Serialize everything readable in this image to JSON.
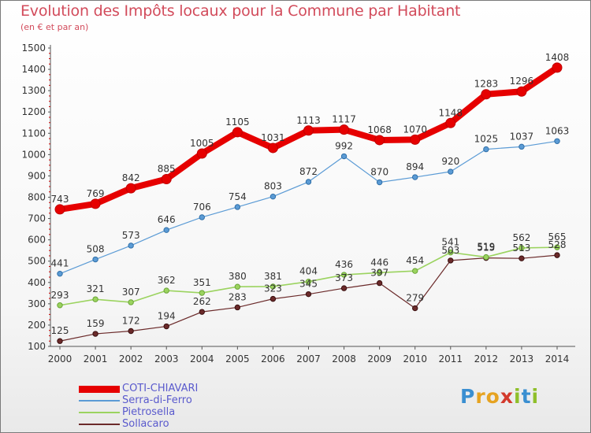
{
  "header": {
    "title": "Evolution des Impôts locaux pour la Commune par Habitant",
    "subtitle": "(en € et par an)"
  },
  "colors": {
    "title": "#d24b5b",
    "axis": "#555555",
    "grid_tick": "#cc0000"
  },
  "logo": {
    "text": "Proxiti",
    "letters": [
      "P",
      "r",
      "o",
      "x",
      "i",
      "t",
      "i"
    ]
  },
  "chart_data": {
    "type": "line",
    "title": "Evolution des Impôts locaux pour la Commune par Habitant",
    "subtitle": "(en € et par an)",
    "xlabel": "",
    "ylabel": "",
    "ylim": [
      100,
      1500
    ],
    "yticks": [
      100,
      200,
      300,
      400,
      500,
      600,
      700,
      800,
      900,
      1000,
      1100,
      1200,
      1300,
      1400,
      1500
    ],
    "x": [
      "2000",
      "2001",
      "2002",
      "2003",
      "2004",
      "2005",
      "2006",
      "2007",
      "2008",
      "2009",
      "2010",
      "2011",
      "2012",
      "2013",
      "2014"
    ],
    "grid": false,
    "legend_position": "bottom-left",
    "series": [
      {
        "name": "COTI-CHIAVARI",
        "color": "#e60000",
        "values": [
          743,
          769,
          842,
          885,
          1005,
          1105,
          1031,
          1113,
          1117,
          1068,
          1070,
          1148,
          1283,
          1296,
          1408
        ]
      },
      {
        "name": "Serra-di-Ferro",
        "color": "#5b9bd5",
        "values": [
          441,
          508,
          573,
          646,
          706,
          754,
          803,
          872,
          992,
          870,
          894,
          920,
          1025,
          1037,
          1063
        ]
      },
      {
        "name": "Pietrosella",
        "color": "#9bd35f",
        "values": [
          293,
          321,
          307,
          362,
          351,
          380,
          381,
          404,
          436,
          446,
          454,
          541,
          519,
          562,
          565
        ]
      },
      {
        "name": "Sollacaro",
        "color": "#6b2a2a",
        "values": [
          125,
          159,
          172,
          194,
          262,
          283,
          323,
          345,
          373,
          397,
          279,
          503,
          515,
          513,
          528
        ]
      }
    ]
  }
}
